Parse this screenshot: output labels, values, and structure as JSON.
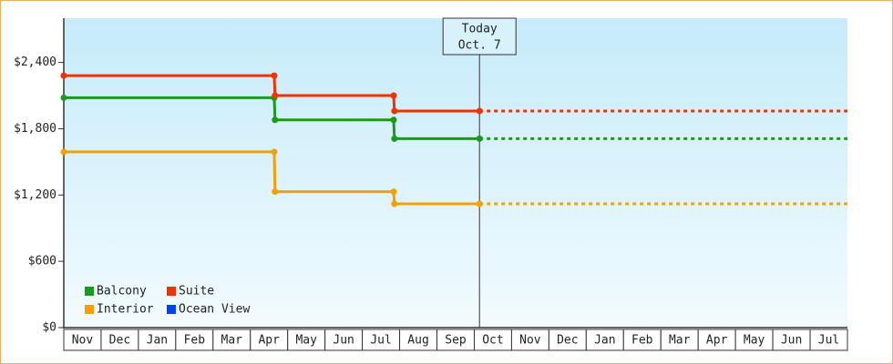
{
  "chart_data": {
    "type": "line",
    "categories": [
      "Nov",
      "Dec",
      "Jan",
      "Feb",
      "Mar",
      "Apr",
      "May",
      "Jun",
      "Jul",
      "Aug",
      "Sep",
      "Oct",
      "Nov",
      "Dec",
      "Jan",
      "Feb",
      "Mar",
      "Apr",
      "May",
      "Jun",
      "Jul"
    ],
    "xlim": [
      0,
      21
    ],
    "ylim": [
      0,
      2800
    ],
    "yticks": [
      {
        "value": 0,
        "label": "$0"
      },
      {
        "value": 600,
        "label": "$600"
      },
      {
        "value": 1200,
        "label": "$1,200"
      },
      {
        "value": 1800,
        "label": "$1,800"
      },
      {
        "value": 2400,
        "label": "$2,400"
      }
    ],
    "series": [
      {
        "name": "Balcony",
        "color": "#1a9a1a",
        "x": [
          0,
          5.64,
          5.66,
          8.84,
          8.86,
          11.14
        ],
        "values": [
          2080,
          2080,
          1880,
          1880,
          1710,
          1710
        ]
      },
      {
        "name": "Suite",
        "color": "#ee3300",
        "x": [
          0,
          5.64,
          5.66,
          8.84,
          8.86,
          11.14
        ],
        "values": [
          2280,
          2280,
          2100,
          2100,
          1960,
          1960
        ]
      },
      {
        "name": "Interior",
        "color": "#f5a000",
        "x": [
          0,
          5.64,
          5.66,
          8.84,
          8.86,
          11.14
        ],
        "values": [
          1590,
          1590,
          1230,
          1230,
          1120,
          1120
        ]
      },
      {
        "name": "Ocean View",
        "color": "#0044ee",
        "x": [],
        "values": []
      }
    ],
    "annotation": {
      "lines": [
        "Today",
        "Oct. 7"
      ],
      "x": 11.14
    }
  }
}
